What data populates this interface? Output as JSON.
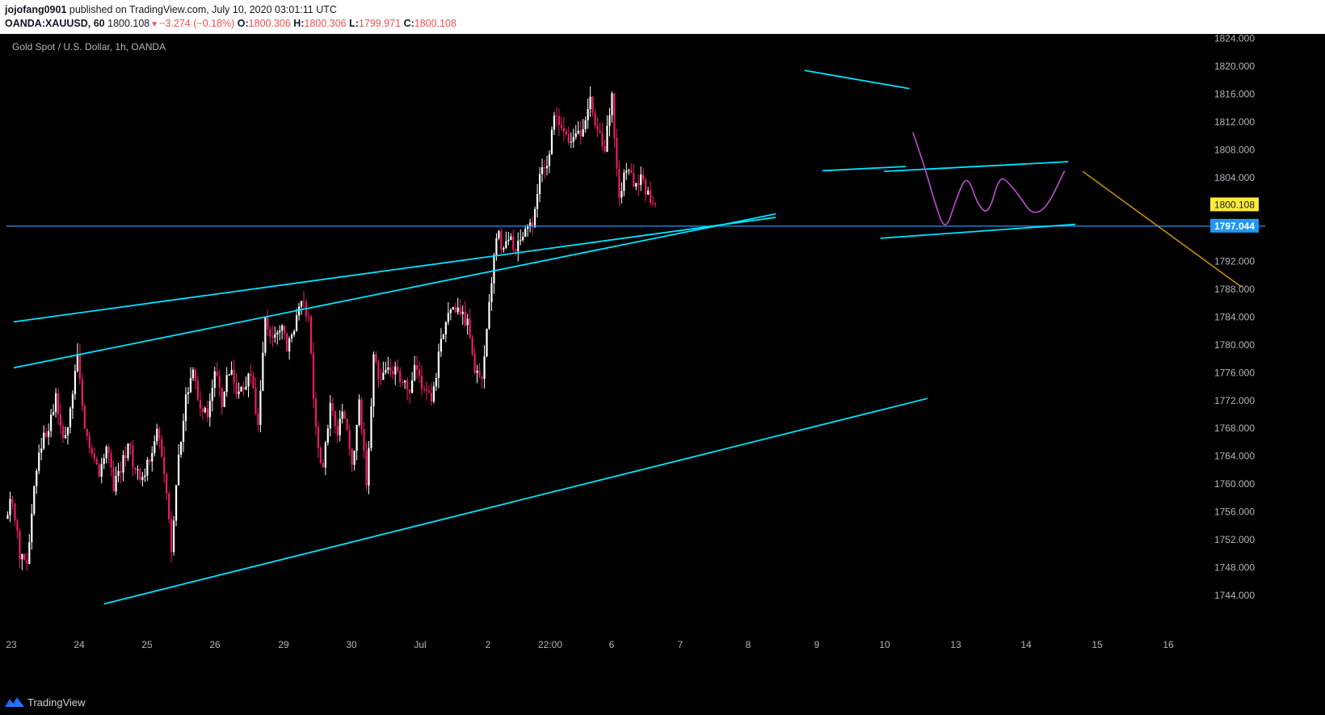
{
  "header": {
    "author": "jojofang0901",
    "published": "published on TradingView.com, July 10, 2020 03:01:11 UTC",
    "symbol": "OANDA:XAUUSD, 60",
    "last": "1800.108",
    "change": "−3.274 (−0.18%)",
    "open_label": "O:",
    "open": "1800.306",
    "high_label": "H:",
    "high": "1800.306",
    "low_label": "L:",
    "low": "1799.971",
    "close_label": "C:",
    "close": "1800.108"
  },
  "footer": {
    "brand": "TradingView"
  },
  "colors": {
    "background": "#000000",
    "bull": "#ffffff",
    "bear": "#e91e63",
    "trendline": "#00e5ff",
    "projection": "#ab47bc",
    "target": "#c58b0a",
    "price_badge": "#ffeb3b",
    "level_badge": "#2196f3"
  },
  "chart_data": {
    "type": "candlestick",
    "title": "Gold Spot / U.S. Dollar, 1h, OANDA",
    "x_ticks": [
      "23",
      "24",
      "25",
      "26",
      "29",
      "30",
      "Jul",
      "2",
      "22:00",
      "6",
      "7",
      "8",
      "9",
      "10",
      "13",
      "14",
      "15",
      "16"
    ],
    "y_ticks": [
      "1824.000",
      "1820.000",
      "1816.000",
      "1812.000",
      "1808.000",
      "1804.000",
      "1800.108",
      "1797.044",
      "1792.000",
      "1788.000",
      "1784.000",
      "1780.000",
      "1776.000",
      "1772.000",
      "1768.000",
      "1764.000",
      "1760.000",
      "1756.000",
      "1752.000",
      "1748.000",
      "1744.000"
    ],
    "ylim": [
      1740,
      1827
    ],
    "last_price": 1800.108,
    "horizontal_level": 1797.044,
    "price_path": [
      [
        0,
        1755
      ],
      [
        1,
        1758
      ],
      [
        2,
        1750
      ],
      [
        3,
        1748
      ],
      [
        4,
        1760
      ],
      [
        5,
        1766
      ],
      [
        6,
        1768
      ],
      [
        7,
        1772
      ],
      [
        8,
        1766
      ],
      [
        9,
        1770
      ],
      [
        10,
        1778
      ],
      [
        11,
        1769
      ],
      [
        12,
        1764
      ],
      [
        13,
        1761
      ],
      [
        14,
        1766
      ],
      [
        15,
        1760
      ],
      [
        16,
        1762
      ],
      [
        17,
        1766
      ],
      [
        18,
        1762
      ],
      [
        19,
        1760
      ],
      [
        20,
        1764
      ],
      [
        21,
        1768
      ],
      [
        22,
        1762
      ],
      [
        23,
        1751
      ],
      [
        24,
        1764
      ],
      [
        25,
        1772
      ],
      [
        26,
        1776
      ],
      [
        27,
        1771
      ],
      [
        28,
        1770
      ],
      [
        29,
        1776
      ],
      [
        30,
        1772
      ],
      [
        31,
        1776
      ],
      [
        32,
        1774
      ],
      [
        33,
        1773
      ],
      [
        34,
        1776
      ],
      [
        35,
        1768
      ],
      [
        36,
        1784
      ],
      [
        37,
        1780
      ],
      [
        38,
        1783
      ],
      [
        39,
        1780
      ],
      [
        40,
        1782
      ],
      [
        41,
        1787
      ],
      [
        42,
        1784
      ],
      [
        43,
        1768
      ],
      [
        44,
        1762
      ],
      [
        45,
        1772
      ],
      [
        46,
        1768
      ],
      [
        47,
        1770
      ],
      [
        48,
        1762
      ],
      [
        49,
        1773
      ],
      [
        50,
        1760
      ],
      [
        51,
        1778
      ],
      [
        52,
        1775
      ],
      [
        53,
        1777
      ],
      [
        54,
        1776
      ],
      [
        55,
        1775
      ],
      [
        56,
        1774
      ],
      [
        57,
        1777
      ],
      [
        58,
        1773
      ],
      [
        59,
        1772
      ],
      [
        60,
        1778
      ],
      [
        61,
        1784
      ],
      [
        62,
        1786
      ],
      [
        63,
        1785
      ],
      [
        64,
        1783
      ],
      [
        65,
        1777
      ],
      [
        66,
        1776
      ],
      [
        67,
        1786
      ],
      [
        68,
        1796
      ],
      [
        69,
        1794
      ],
      [
        70,
        1795
      ],
      [
        71,
        1794
      ],
      [
        72,
        1796
      ],
      [
        73,
        1797
      ],
      [
        74,
        1804
      ],
      [
        75,
        1806
      ],
      [
        76,
        1813
      ],
      [
        77,
        1811
      ],
      [
        78,
        1809
      ],
      [
        79,
        1810
      ],
      [
        80,
        1810
      ],
      [
        81,
        1815
      ],
      [
        82,
        1811
      ],
      [
        83,
        1808
      ],
      [
        84,
        1815
      ],
      [
        85,
        1801
      ],
      [
        86,
        1805
      ],
      [
        87,
        1803
      ],
      [
        88,
        1804
      ],
      [
        89,
        1802
      ],
      [
        90,
        1800.1
      ]
    ],
    "trendlines": [
      {
        "name": "upper-channel",
        "points": [
          [
            1,
            1783.3
          ],
          [
            106.5,
            1798.3
          ]
        ]
      },
      {
        "name": "rising-resistance",
        "points": [
          [
            1,
            1776.7
          ],
          [
            106.5,
            1798.8
          ]
        ]
      },
      {
        "name": "lower-support",
        "points": [
          [
            13.5,
            1742.8
          ],
          [
            127.5,
            1772.3
          ]
        ]
      },
      {
        "name": "flag-top",
        "points": [
          [
            110.5,
            1819.4
          ],
          [
            125,
            1816.8
          ]
        ]
      },
      {
        "name": "consolidation-top",
        "points": [
          [
            113,
            1805.0
          ],
          [
            124.5,
            1805.6
          ]
        ]
      },
      {
        "name": "wedge-top",
        "points": [
          [
            121.5,
            1804.9
          ],
          [
            147,
            1806.3
          ]
        ]
      },
      {
        "name": "wedge-bottom",
        "points": [
          [
            121,
            1795.3
          ],
          [
            148,
            1797.3
          ]
        ]
      }
    ],
    "projection_path": [
      [
        125.5,
        1810.5
      ],
      [
        127,
        1806
      ],
      [
        128.5,
        1800.5
      ],
      [
        130,
        1796.1
      ],
      [
        131.5,
        1801
      ],
      [
        133,
        1804.6
      ],
      [
        134.5,
        1800
      ],
      [
        136,
        1798.7
      ],
      [
        137.5,
        1804.4
      ],
      [
        139,
        1803
      ],
      [
        140.5,
        1801
      ],
      [
        142,
        1798.7
      ],
      [
        144,
        1799.6
      ],
      [
        146.5,
        1805
      ]
    ],
    "target_line": [
      [
        149,
        1804.9
      ],
      [
        171,
        1788.3
      ]
    ]
  }
}
